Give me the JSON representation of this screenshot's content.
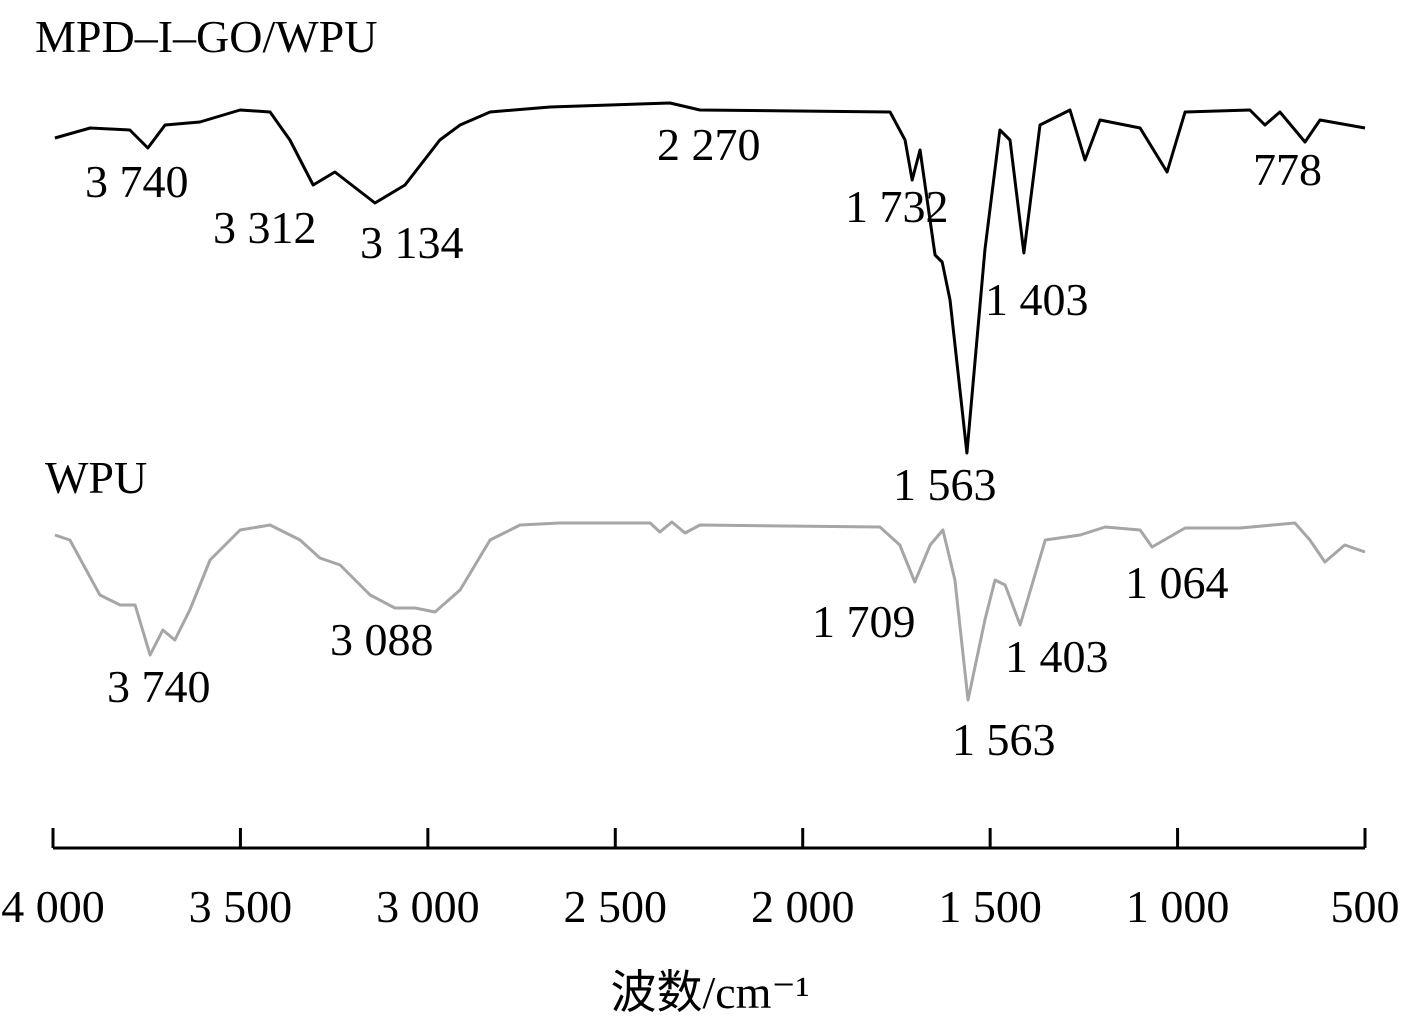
{
  "chart_data": {
    "type": "line",
    "xlabel": "波数/cm⁻¹",
    "xlim": [
      4000,
      500
    ],
    "xticks": [
      {
        "value": 4000,
        "label": "4 000"
      },
      {
        "value": 3500,
        "label": "3 500"
      },
      {
        "value": 3000,
        "label": "3 000"
      },
      {
        "value": 2500,
        "label": "2 500"
      },
      {
        "value": 2000,
        "label": "2 000"
      },
      {
        "value": 1500,
        "label": "1 500"
      },
      {
        "value": 1000,
        "label": "1 000"
      },
      500
    ],
    "ylim": [
      0,
      820
    ],
    "series": [
      {
        "name": "MPD–I–GO/WPU",
        "color": "#000000",
        "x": [
          3995,
          3901,
          3795,
          3747,
          3701,
          3608,
          3501,
          3421,
          3368,
          3306,
          3248,
          3141,
          3061,
          2968,
          2914,
          2834,
          2674,
          2354,
          2274,
          1767,
          1727,
          1708,
          1687,
          1647,
          1628,
          1607,
          1562,
          1514,
          1474,
          1447,
          1410,
          1367,
          1287,
          1247,
          1207,
          1100,
          1028,
          980,
          807,
          767,
          727,
          660,
          620,
          500
        ],
        "values": [
          702,
          712,
          710,
          692,
          715,
          718,
          730,
          728,
          700,
          655,
          668,
          637,
          655,
          700,
          715,
          728,
          733,
          737,
          730,
          728,
          700,
          660,
          690,
          585,
          578,
          540,
          387,
          590,
          710,
          700,
          587,
          715,
          730,
          680,
          720,
          712,
          668,
          728,
          730,
          715,
          728,
          698,
          720,
          712
        ],
        "annotations": [
          "3 740",
          "3 312",
          "3 134",
          "2 270",
          "1 732",
          "1 403",
          "1 563",
          "778"
        ]
      },
      {
        "name": "WPU",
        "color": "#a6a6a6",
        "x": [
          3995,
          3955,
          3875,
          3821,
          3781,
          3741,
          3707,
          3675,
          3635,
          3581,
          3501,
          3421,
          3341,
          3288,
          3234,
          3154,
          3088,
          3034,
          2981,
          2914,
          2834,
          2754,
          2648,
          2407,
          2381,
          2349,
          2314,
          2274,
          1794,
          1741,
          1701,
          1660,
          1626,
          1594,
          1559,
          1514,
          1487,
          1460,
          1420,
          1353,
          1260,
          1193,
          1100,
          1068,
          980,
          833,
          687,
          647,
          607,
          554,
          500
        ],
        "values": [
          305,
          300,
          245,
          235,
          235,
          185,
          210,
          200,
          230,
          280,
          310,
          315,
          300,
          282,
          275,
          245,
          232,
          232,
          228,
          250,
          300,
          315,
          317,
          317,
          308,
          318,
          307,
          315,
          313,
          295,
          258,
          295,
          310,
          260,
          140,
          220,
          260,
          255,
          215,
          300,
          305,
          313,
          310,
          293,
          312,
          312,
          317,
          300,
          278,
          295,
          288
        ],
        "annotations": [
          "3 740",
          "3 088",
          "1 709",
          "1 403",
          "1 563",
          "1 064"
        ]
      }
    ]
  }
}
